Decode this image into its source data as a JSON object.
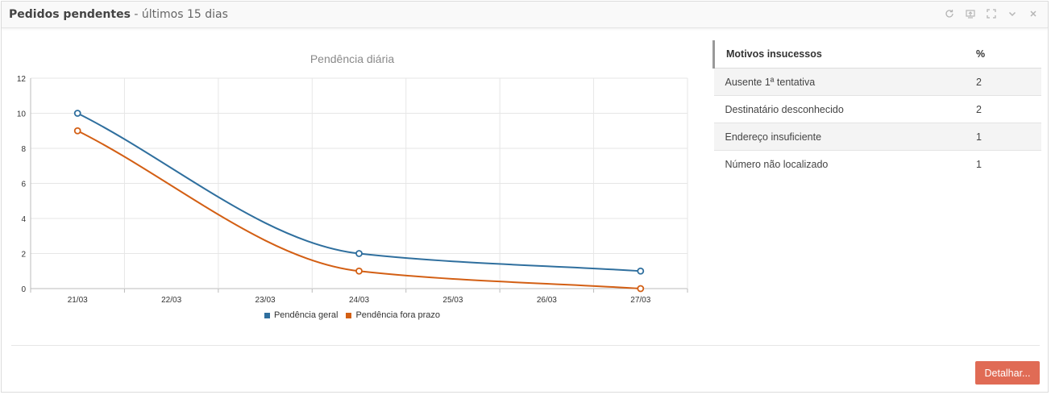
{
  "panel": {
    "title_strong": "Pedidos pendentes",
    "title_rest": " - últimos 15 dias",
    "tools": [
      "refresh-icon",
      "export-icon",
      "fullscreen-icon",
      "collapse-icon",
      "close-icon"
    ]
  },
  "chart_data": {
    "type": "line",
    "title": "Pendência diária",
    "categories": [
      "21/03",
      "22/03",
      "23/03",
      "24/03",
      "25/03",
      "26/03",
      "27/03"
    ],
    "ylim": [
      0,
      12
    ],
    "yticks": [
      0,
      2,
      4,
      6,
      8,
      10,
      12
    ],
    "grid": true,
    "legend": "bottom",
    "series": [
      {
        "name": "Pendência geral",
        "color": "#2f6f9e",
        "points": [
          [
            0,
            10
          ],
          [
            3,
            2
          ],
          [
            6,
            1
          ]
        ]
      },
      {
        "name": "Pendência fora prazo",
        "color": "#d35f14",
        "points": [
          [
            0,
            9
          ],
          [
            3,
            1
          ],
          [
            6,
            0
          ]
        ]
      }
    ]
  },
  "table": {
    "headers": [
      "Motivos insucessos",
      "%"
    ],
    "rows": [
      {
        "motivo": "Ausente 1ª tentativa",
        "pct": "2"
      },
      {
        "motivo": "Destinatário desconhecido",
        "pct": "2"
      },
      {
        "motivo": "Endereço insuficiente",
        "pct": "1"
      },
      {
        "motivo": "Número não localizado",
        "pct": "1"
      }
    ]
  },
  "actions": {
    "detail_label": "Detalhar..."
  }
}
